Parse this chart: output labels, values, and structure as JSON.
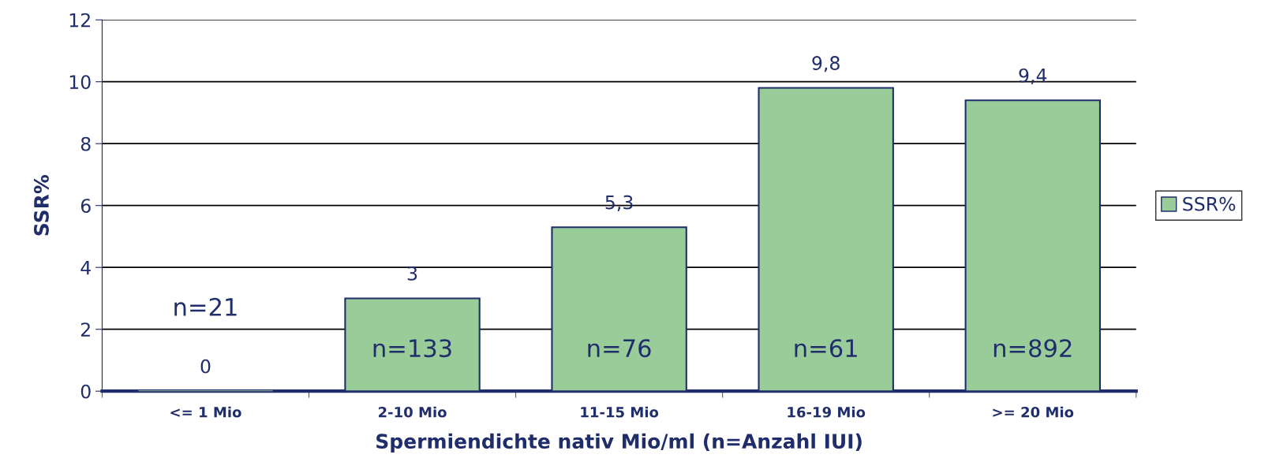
{
  "chart_data": {
    "type": "bar",
    "xlabel": "Spermiendichte nativ Mio/ml (n=Anzahl IUI)",
    "ylabel": "SSR%",
    "categories": [
      "<= 1 Mio",
      "2-10 Mio",
      "11-15 Mio",
      "16-19 Mio",
      ">= 20 Mio"
    ],
    "series": [
      {
        "name": "SSR%",
        "color": "#99cc99",
        "values": [
          0,
          3,
          5.3,
          9.8,
          9.4
        ],
        "value_labels": [
          "0",
          "3",
          "5,3",
          "9,8",
          "9,4"
        ]
      }
    ],
    "ylim": [
      0,
      12
    ],
    "yticks": [
      0,
      2,
      4,
      6,
      8,
      10,
      12
    ],
    "grid": "y",
    "legend": "right",
    "annotations": [
      "n=21",
      "n=133",
      "n=76",
      "n=61",
      "n=892"
    ]
  }
}
